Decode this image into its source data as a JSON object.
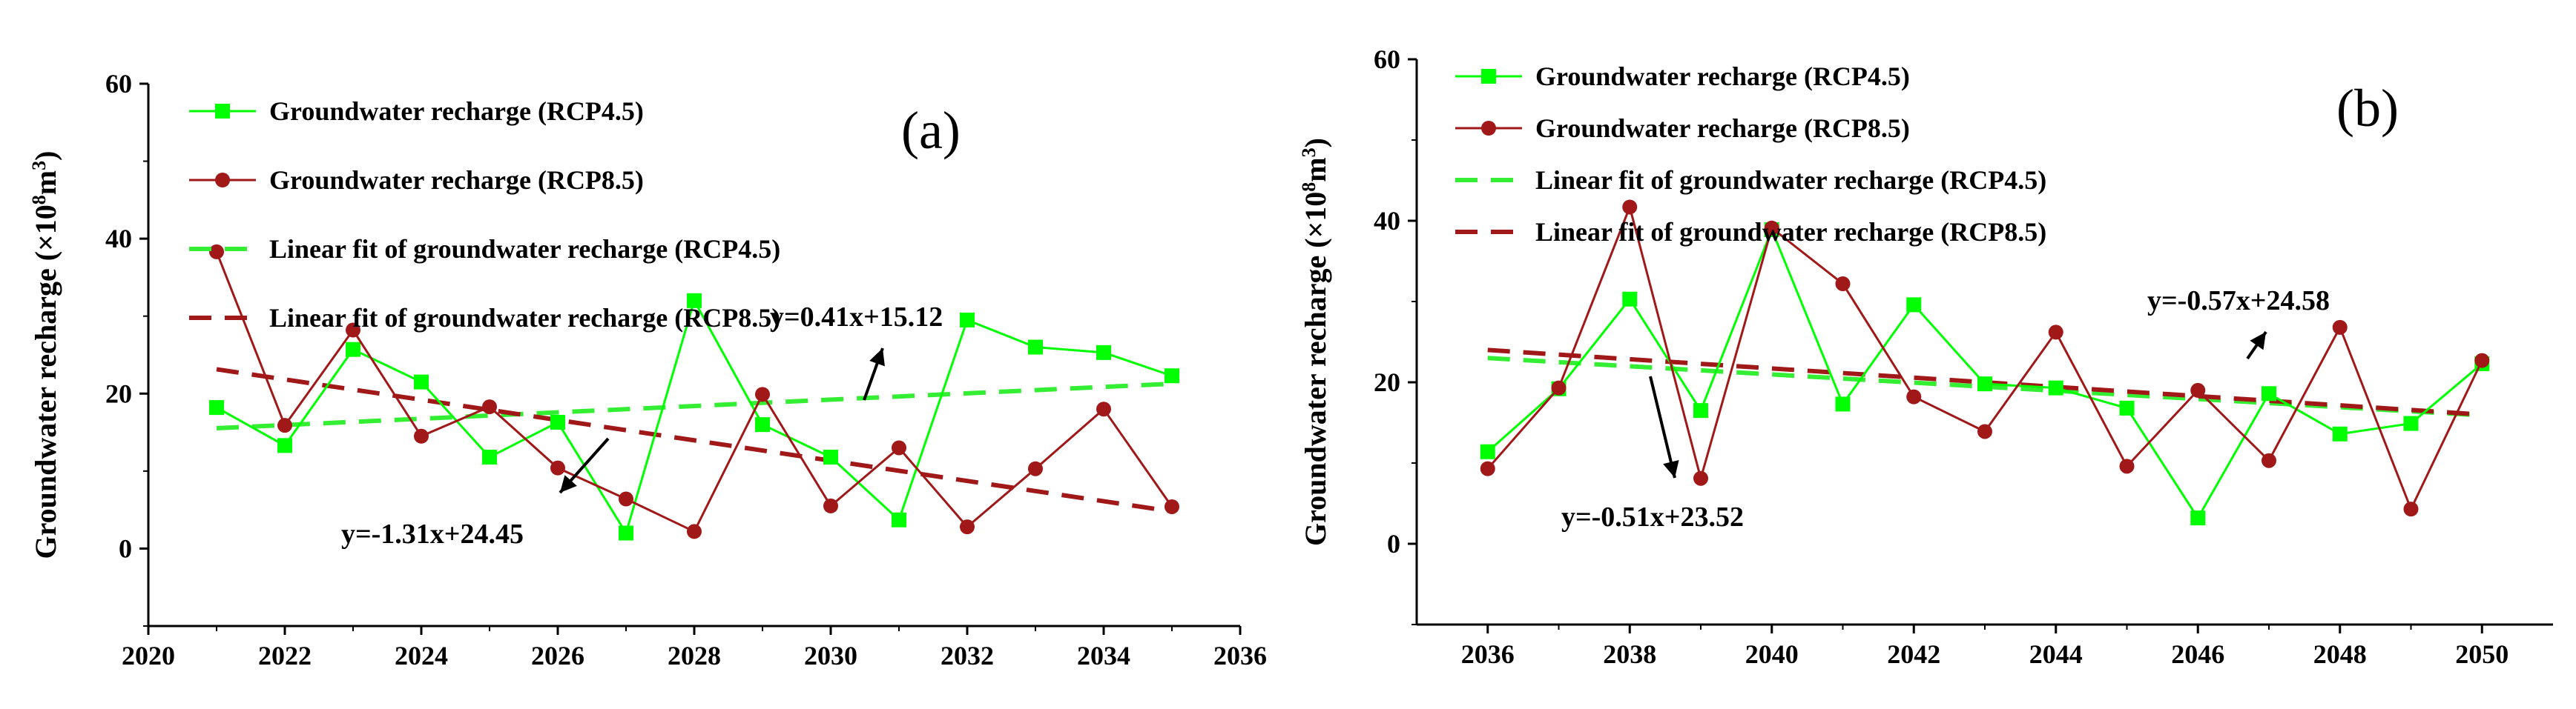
{
  "chart_data": [
    {
      "type": "line",
      "panel_label": "(a)",
      "ylabel_main": "Groundwater recharge (×10",
      "ylabel_sup": "8",
      "ylabel_unit": "m",
      "ylabel_sup2": "3",
      "ylabel_close": ")",
      "xlim": [
        2020,
        2036
      ],
      "ylim": [
        -10,
        60
      ],
      "xticks": [
        2020,
        2022,
        2024,
        2026,
        2028,
        2030,
        2032,
        2034,
        2036
      ],
      "yticks": [
        0,
        20,
        40,
        60
      ],
      "series": [
        {
          "name": "Groundwater recharge (RCP4.5)",
          "color": "#00ff00",
          "marker": "square",
          "x": [
            2021,
            2022,
            2023,
            2024,
            2025,
            2026,
            2027,
            2028,
            2029,
            2030,
            2031,
            2032,
            2033,
            2034,
            2035
          ],
          "values": [
            18.2,
            13.3,
            25.7,
            21.5,
            11.8,
            16.3,
            2.0,
            32.0,
            16.0,
            11.8,
            3.7,
            29.5,
            26.0,
            25.3,
            22.3
          ]
        },
        {
          "name": "Groundwater recharge (RCP8.5)",
          "color": "#a01818",
          "marker": "circle",
          "x": [
            2021,
            2022,
            2023,
            2024,
            2025,
            2026,
            2027,
            2028,
            2029,
            2030,
            2031,
            2032,
            2033,
            2034,
            2035
          ],
          "values": [
            38.3,
            15.9,
            28.2,
            14.5,
            18.3,
            10.4,
            6.4,
            2.2,
            19.9,
            5.5,
            13.0,
            2.8,
            10.3,
            18.0,
            5.4
          ]
        }
      ],
      "fits": [
        {
          "name": "Linear fit of groundwater recharge (RCP4.5)",
          "color": "#33ee33",
          "x": [
            2021,
            2035
          ],
          "values": [
            15.53,
            21.27
          ]
        },
        {
          "name": "Linear fit of groundwater recharge (RCP8.5)",
          "color": "#a01818",
          "x": [
            2021,
            2035
          ],
          "values": [
            23.14,
            4.8
          ]
        }
      ],
      "annotations": [
        {
          "text": "y=0.41x+15.12"
        },
        {
          "text": "y=-1.31x+24.45"
        }
      ]
    },
    {
      "type": "line",
      "panel_label": "(b)",
      "ylabel_main": "Groundwater recharge (×10",
      "ylabel_sup": "8",
      "ylabel_unit": "m",
      "ylabel_sup2": "3",
      "ylabel_close": ")",
      "xlim": [
        2035,
        2051
      ],
      "ylim": [
        -10,
        60
      ],
      "xticks": [
        2036,
        2038,
        2040,
        2042,
        2044,
        2046,
        2048,
        2050
      ],
      "yticks": [
        0,
        20,
        40,
        60
      ],
      "series": [
        {
          "name": "Groundwater recharge (RCP4.5)",
          "color": "#00ff00",
          "marker": "square",
          "x": [
            2036,
            2037,
            2038,
            2039,
            2040,
            2041,
            2042,
            2043,
            2044,
            2045,
            2046,
            2047,
            2048,
            2049,
            2050
          ],
          "values": [
            11.4,
            19.2,
            30.3,
            16.5,
            38.9,
            17.3,
            29.6,
            19.8,
            19.3,
            16.8,
            3.2,
            18.6,
            13.6,
            14.9,
            22.3
          ]
        },
        {
          "name": "Groundwater recharge (RCP8.5)",
          "color": "#a01818",
          "marker": "circle",
          "x": [
            2036,
            2037,
            2038,
            2039,
            2040,
            2041,
            2042,
            2043,
            2044,
            2045,
            2046,
            2047,
            2048,
            2049,
            2050
          ],
          "values": [
            9.3,
            19.3,
            41.7,
            8.1,
            39.1,
            32.2,
            18.2,
            13.9,
            26.2,
            9.6,
            19.0,
            10.3,
            26.8,
            4.3,
            22.7
          ]
        }
      ],
      "fits": [
        {
          "name": "Linear fit of groundwater recharge (RCP4.5)",
          "color": "#33ee33",
          "x": [
            2036,
            2050
          ],
          "values": [
            23.0,
            15.9
          ]
        },
        {
          "name": "Linear fit of groundwater recharge (RCP8.5)",
          "color": "#a01818",
          "x": [
            2036,
            2050
          ],
          "values": [
            24.0,
            16.0
          ]
        }
      ],
      "annotations": [
        {
          "text": "y=-0.57x+24.58"
        },
        {
          "text": "y=-0.51x+23.52"
        }
      ]
    }
  ]
}
